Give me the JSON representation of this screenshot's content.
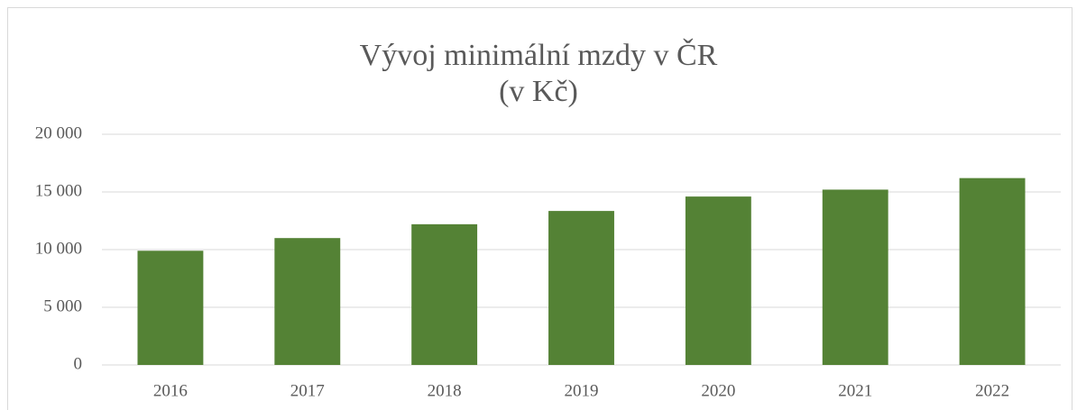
{
  "chart_data": {
    "type": "bar",
    "title": "Vývoj minimální mzdy v ČR",
    "subtitle": "(v Kč)",
    "categories": [
      "2016",
      "2017",
      "2018",
      "2019",
      "2020",
      "2021",
      "2022"
    ],
    "values": [
      9900,
      11000,
      12200,
      13350,
      14600,
      15200,
      16200
    ],
    "color": "#548235",
    "ylim": [
      0,
      20000
    ],
    "yticks": [
      0,
      {
        "value": 5000,
        "label": "5 000"
      },
      {
        "value": 10000,
        "label": "10 000"
      },
      {
        "value": 15000,
        "label": "15 000"
      },
      {
        "value": 20000,
        "label": "20 000"
      }
    ],
    "grid": true
  }
}
